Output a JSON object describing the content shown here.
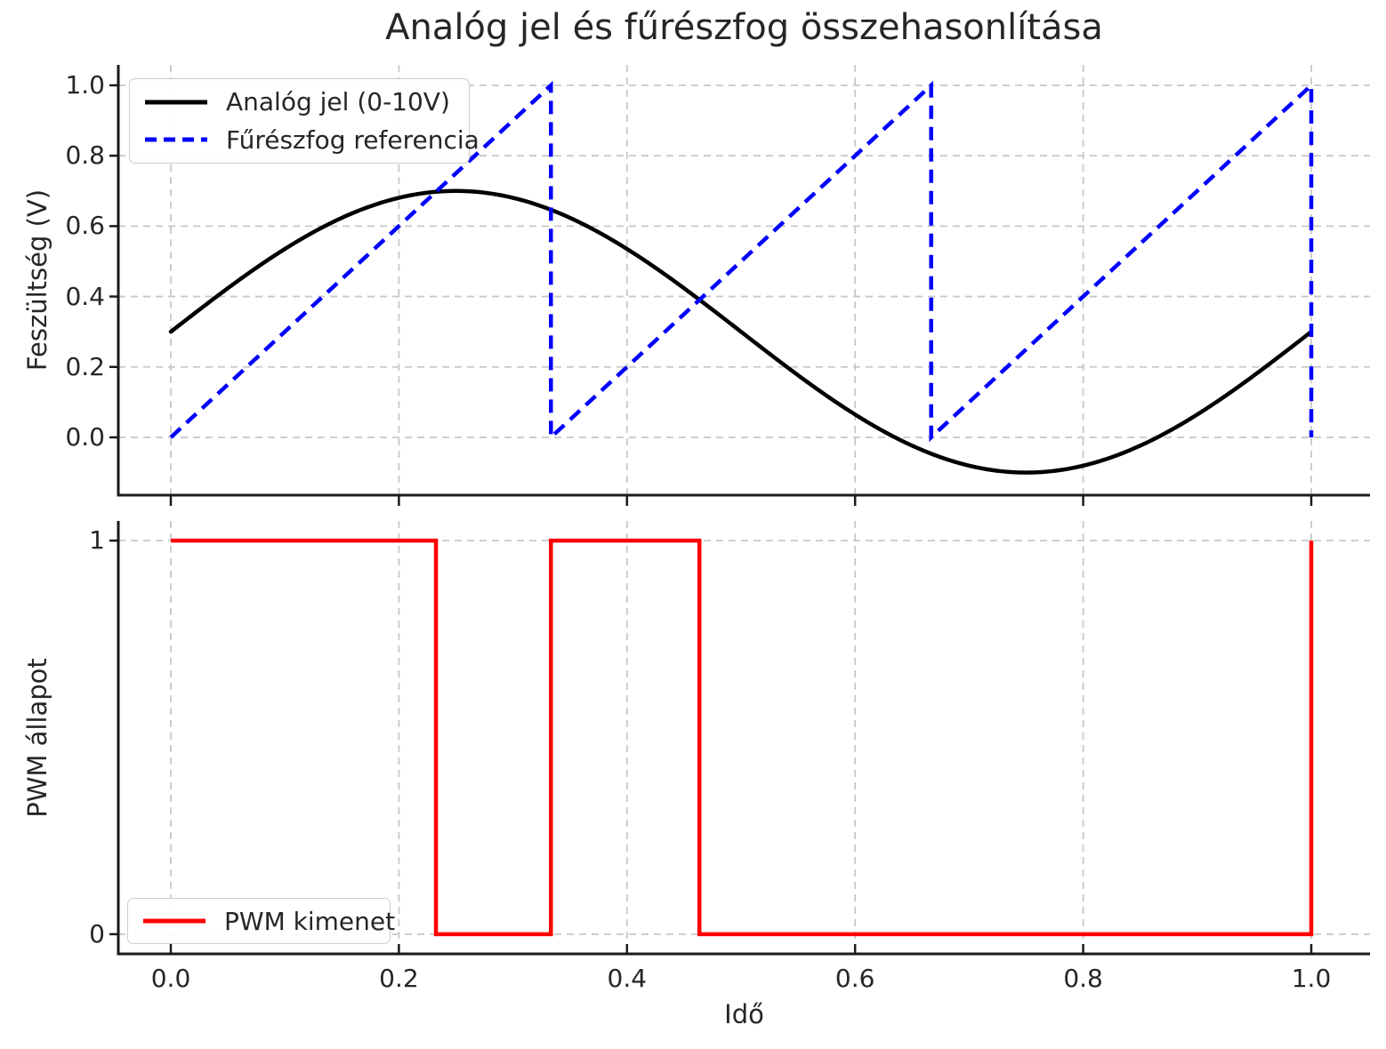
{
  "title": "Analóg jel és fűrészfog összehasonlítása",
  "colors": {
    "analog": "#000000",
    "sawtooth": "#0000ff",
    "pwm": "#ff0000",
    "grid": "#c8c8c8",
    "spine": "#1a1a1a",
    "text": "#262626",
    "legend_border": "#cccccc"
  },
  "chart_data": [
    {
      "type": "line",
      "title": "Analóg jel és fűrészfog összehasonlítása",
      "xlabel": "",
      "ylabel": "Feszültség (V)",
      "xlim": [
        -0.05,
        1.05
      ],
      "ylim": [
        -0.16,
        1.06
      ],
      "grid": true,
      "legend_position": "upper left",
      "x_ticks": {
        "values": [
          0,
          0.2,
          0.4,
          0.6,
          0.8,
          1.0
        ],
        "labels": []
      },
      "y_ticks": {
        "values": [
          0,
          0.2,
          0.4,
          0.6,
          0.8,
          1.0
        ],
        "labels": [
          "0.0",
          "0.2",
          "0.4",
          "0.6",
          "0.8",
          "1.0"
        ]
      },
      "series": [
        {
          "name": "Analóg jel (0-10V)",
          "color": "#000000",
          "style": "solid",
          "formula": "v(t) = 0.3 + 0.4*sin(2*pi*t)",
          "params": {
            "offset": 0.3,
            "amplitude": 0.4,
            "frequency": 1
          },
          "points": [
            [
              0,
              0.3
            ],
            [
              0.05,
              0.424
            ],
            [
              0.1,
              0.535
            ],
            [
              0.15,
              0.624
            ],
            [
              0.2,
              0.68
            ],
            [
              0.25,
              0.7
            ],
            [
              0.3,
              0.68
            ],
            [
              0.35,
              0.624
            ],
            [
              0.4,
              0.535
            ],
            [
              0.45,
              0.424
            ],
            [
              0.5,
              0.3
            ],
            [
              0.55,
              0.176
            ],
            [
              0.6,
              0.065
            ],
            [
              0.65,
              -0.024
            ],
            [
              0.7,
              -0.08
            ],
            [
              0.75,
              -0.1
            ],
            [
              0.8,
              -0.08
            ],
            [
              0.85,
              -0.024
            ],
            [
              0.9,
              0.065
            ],
            [
              0.95,
              0.176
            ],
            [
              1,
              0.3
            ]
          ]
        },
        {
          "name": "Fűrészfog referencia",
          "color": "#0000ff",
          "style": "dashed",
          "params": {
            "period": 0.3333,
            "min": 0,
            "max": 1,
            "cycles": 3
          },
          "points": [
            [
              0,
              0
            ],
            [
              0.3333,
              1
            ],
            [
              0.3333,
              0
            ],
            [
              0.6667,
              1
            ],
            [
              0.6667,
              0
            ],
            [
              1,
              1
            ],
            [
              1,
              0
            ]
          ]
        }
      ]
    },
    {
      "type": "line",
      "title": "",
      "xlabel": "Idő",
      "ylabel": "PWM állapot",
      "xlim": [
        -0.05,
        1.05
      ],
      "ylim": [
        -0.05,
        1.05
      ],
      "grid": true,
      "legend_position": "lower left",
      "x_ticks": {
        "values": [
          0,
          0.2,
          0.4,
          0.6,
          0.8,
          1.0
        ],
        "labels": [
          "0.0",
          "0.2",
          "0.4",
          "0.6",
          "0.8",
          "1.0"
        ]
      },
      "y_ticks": {
        "values": [
          0,
          1
        ],
        "labels": [
          "0",
          "1"
        ]
      },
      "series": [
        {
          "name": "PWM kimenet",
          "color": "#ff0000",
          "style": "solid",
          "points": [
            [
              0,
              1
            ],
            [
              0.2325,
              1
            ],
            [
              0.2325,
              0
            ],
            [
              0.3333,
              0
            ],
            [
              0.3333,
              1
            ],
            [
              0.4635,
              1
            ],
            [
              0.4635,
              0
            ],
            [
              1,
              0
            ],
            [
              1,
              1
            ]
          ]
        }
      ]
    }
  ]
}
